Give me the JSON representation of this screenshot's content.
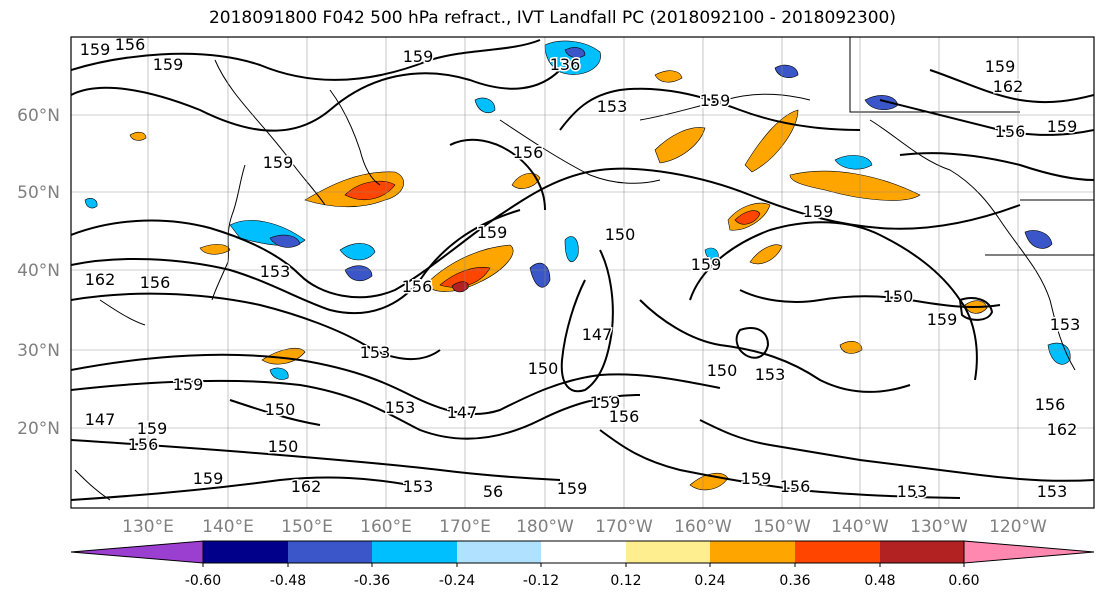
{
  "title": "2018091800 F042 500 hPa refract., IVT Landfall PC (2018092100 - 2018092300)",
  "lat_labels": [
    "60°N",
    "50°N",
    "40°N",
    "30°N",
    "20°N"
  ],
  "lon_labels": [
    "130°E",
    "140°E",
    "150°E",
    "160°E",
    "170°E",
    "180°W",
    "170°W",
    "160°W",
    "150°W",
    "140°W",
    "130°W",
    "120°W"
  ],
  "colorbar": {
    "colors": [
      "#9a3fd0",
      "#00008b",
      "#3a56c8",
      "#00bfff",
      "#b0e2ff",
      "#ffffff",
      "#ffee8f",
      "#ffa500",
      "#ff4500",
      "#b22222",
      "#ff88b0"
    ],
    "tick_labels": [
      "-0.60",
      "-0.48",
      "-0.36",
      "-0.24",
      "-0.12",
      "0.12",
      "0.24",
      "0.36",
      "0.48",
      "0.60"
    ]
  },
  "contour_labels": [
    "159",
    "156",
    "159",
    "136",
    "159",
    "153",
    "159",
    "162",
    "156",
    "159",
    "159",
    "156",
    "159",
    "150",
    "159",
    "159",
    "153",
    "156",
    "162",
    "156",
    "150",
    "147",
    "159",
    "153",
    "150",
    "153",
    "147",
    "150",
    "150",
    "156",
    "159",
    "147",
    "150",
    "153",
    "159",
    "156",
    "159",
    "162",
    "153",
    "56",
    "159",
    "159",
    "156",
    "153",
    "153",
    "162",
    "153",
    "159",
    "159",
    "156"
  ]
}
